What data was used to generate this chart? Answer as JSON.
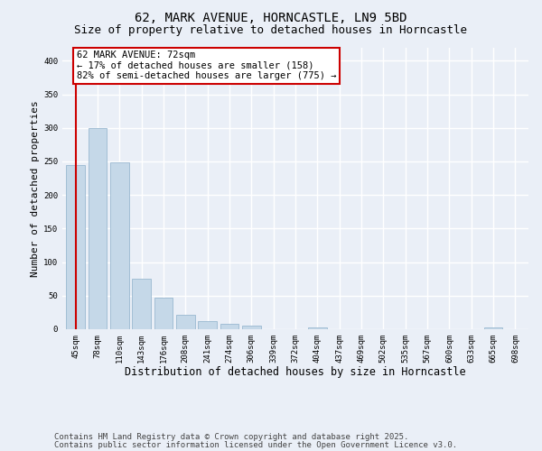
{
  "title_line1": "62, MARK AVENUE, HORNCASTLE, LN9 5BD",
  "title_line2": "Size of property relative to detached houses in Horncastle",
  "xlabel": "Distribution of detached houses by size in Horncastle",
  "ylabel": "Number of detached properties",
  "bar_color": "#c5d8e8",
  "bar_edge_color": "#9ab8d0",
  "categories": [
    "45sqm",
    "78sqm",
    "110sqm",
    "143sqm",
    "176sqm",
    "208sqm",
    "241sqm",
    "274sqm",
    "306sqm",
    "339sqm",
    "372sqm",
    "404sqm",
    "437sqm",
    "469sqm",
    "502sqm",
    "535sqm",
    "567sqm",
    "600sqm",
    "633sqm",
    "665sqm",
    "698sqm"
  ],
  "values": [
    245,
    300,
    248,
    75,
    47,
    22,
    12,
    8,
    5,
    0,
    0,
    3,
    0,
    0,
    0,
    0,
    0,
    0,
    0,
    3,
    0
  ],
  "ylim": [
    0,
    420
  ],
  "yticks": [
    0,
    50,
    100,
    150,
    200,
    250,
    300,
    350,
    400
  ],
  "property_line_x": 0.0,
  "property_line_color": "#cc0000",
  "annotation_text": "62 MARK AVENUE: 72sqm\n← 17% of detached houses are smaller (158)\n82% of semi-detached houses are larger (775) →",
  "annotation_box_color": "#ffffff",
  "annotation_box_edge_color": "#cc0000",
  "bg_color": "#eaeff7",
  "plot_bg_color": "#eaeff7",
  "grid_color": "#ffffff",
  "footer_line1": "Contains HM Land Registry data © Crown copyright and database right 2025.",
  "footer_line2": "Contains public sector information licensed under the Open Government Licence v3.0.",
  "title_fontsize": 10,
  "subtitle_fontsize": 9,
  "tick_fontsize": 6.5,
  "xlabel_fontsize": 8.5,
  "ylabel_fontsize": 8,
  "annotation_fontsize": 7.5,
  "footer_fontsize": 6.5
}
